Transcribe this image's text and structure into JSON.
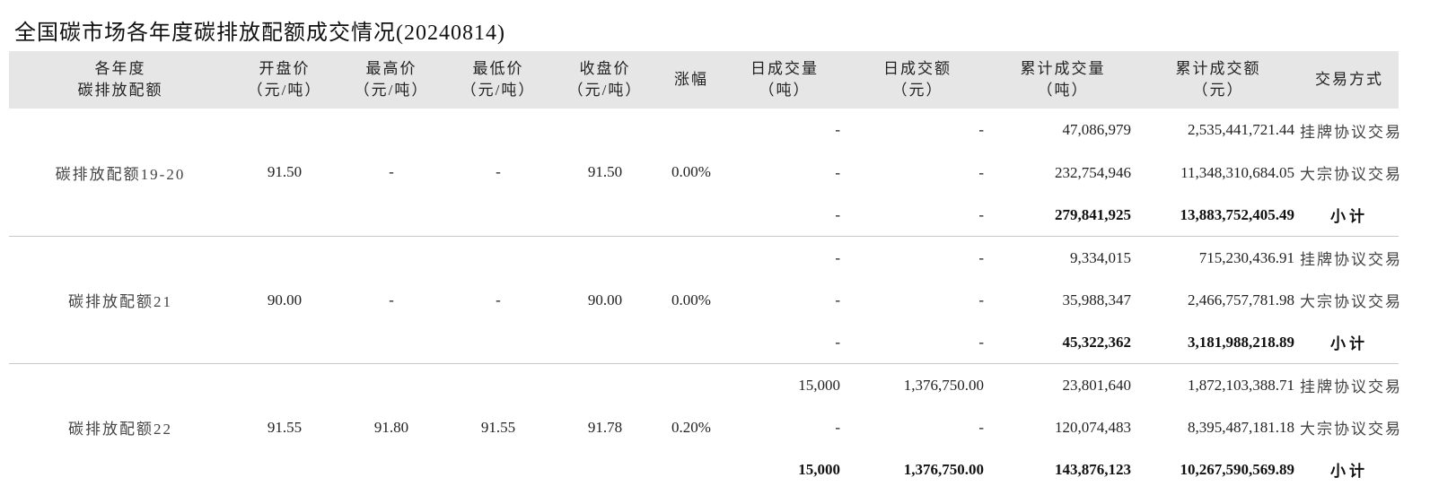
{
  "title": "全国碳市场各年度碳排放配额成交情况(20240814)",
  "headers": [
    {
      "line1": "各年度",
      "line2": "碳排放配额"
    },
    {
      "line1": "开盘价",
      "line2": "（元/吨）"
    },
    {
      "line1": "最高价",
      "line2": "（元/吨）"
    },
    {
      "line1": "最低价",
      "line2": "（元/吨）"
    },
    {
      "line1": "收盘价",
      "line2": "（元/吨）"
    },
    {
      "line1": "涨幅",
      "line2": ""
    },
    {
      "line1": "日成交量",
      "line2": "（吨）"
    },
    {
      "line1": "日成交额",
      "line2": "（元）"
    },
    {
      "line1": "累计成交量",
      "line2": "（吨）"
    },
    {
      "line1": "累计成交额",
      "line2": "（元）"
    },
    {
      "line1": "交易方式",
      "line2": ""
    }
  ],
  "groups": [
    {
      "name": "碳排放配额19-20",
      "open": "91.50",
      "high": "-",
      "low": "-",
      "close": "91.50",
      "change": "0.00%",
      "rows": [
        {
          "daily_volume": "-",
          "daily_amount": "-",
          "cum_volume": "47,086,979",
          "cum_amount": "2,535,441,721.44",
          "method": "挂牌协议交易"
        },
        {
          "daily_volume": "-",
          "daily_amount": "-",
          "cum_volume": "232,754,946",
          "cum_amount": "11,348,310,684.05",
          "method": "大宗协议交易"
        },
        {
          "daily_volume": "-",
          "daily_amount": "-",
          "cum_volume": "279,841,925",
          "cum_amount": "13,883,752,405.49",
          "method": "小计"
        }
      ]
    },
    {
      "name": "碳排放配额21",
      "open": "90.00",
      "high": "-",
      "low": "-",
      "close": "90.00",
      "change": "0.00%",
      "rows": [
        {
          "daily_volume": "-",
          "daily_amount": "-",
          "cum_volume": "9,334,015",
          "cum_amount": "715,230,436.91",
          "method": "挂牌协议交易"
        },
        {
          "daily_volume": "-",
          "daily_amount": "-",
          "cum_volume": "35,988,347",
          "cum_amount": "2,466,757,781.98",
          "method": "大宗协议交易"
        },
        {
          "daily_volume": "-",
          "daily_amount": "-",
          "cum_volume": "45,322,362",
          "cum_amount": "3,181,988,218.89",
          "method": "小计"
        }
      ]
    },
    {
      "name": "碳排放配额22",
      "open": "91.55",
      "high": "91.80",
      "low": "91.55",
      "close": "91.78",
      "change": "0.20%",
      "rows": [
        {
          "daily_volume": "15,000",
          "daily_amount": "1,376,750.00",
          "cum_volume": "23,801,640",
          "cum_amount": "1,872,103,388.71",
          "method": "挂牌协议交易"
        },
        {
          "daily_volume": "-",
          "daily_amount": "-",
          "cum_volume": "120,074,483",
          "cum_amount": "8,395,487,181.18",
          "method": "大宗协议交易"
        },
        {
          "daily_volume": "15,000",
          "daily_amount": "1,376,750.00",
          "cum_volume": "143,876,123",
          "cum_amount": "10,267,590,569.89",
          "method": "小计"
        }
      ]
    }
  ]
}
